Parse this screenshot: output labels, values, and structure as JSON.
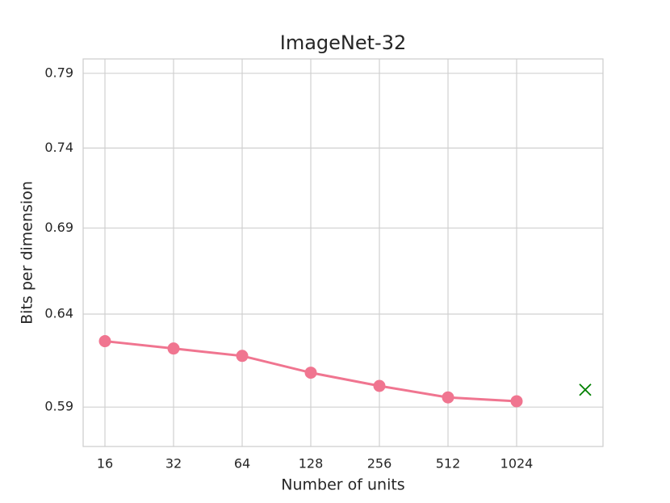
{
  "chart_data": {
    "type": "line",
    "title": "ImageNet-32",
    "x_label": "Number of units",
    "y_label": "Bits per dimension",
    "categories": [
      "16",
      "32",
      "64",
      "128",
      "256",
      "512",
      "1024",
      null
    ],
    "series": [
      {
        "color": "#f07590",
        "marker": "o",
        "values": [
          0.625,
          0.621,
          0.617,
          0.608,
          0.601,
          0.595,
          0.593,
          null
        ]
      },
      {
        "color": "#008000",
        "marker": "x",
        "values": [
          null,
          null,
          null,
          null,
          null,
          null,
          null,
          0.599
        ]
      }
    ],
    "ylim": [
      0.57,
      0.8
    ],
    "yticks": [
      0.59,
      0.64,
      0.69,
      0.74,
      0.79
    ],
    "y_scale": "log",
    "grid": true
  }
}
